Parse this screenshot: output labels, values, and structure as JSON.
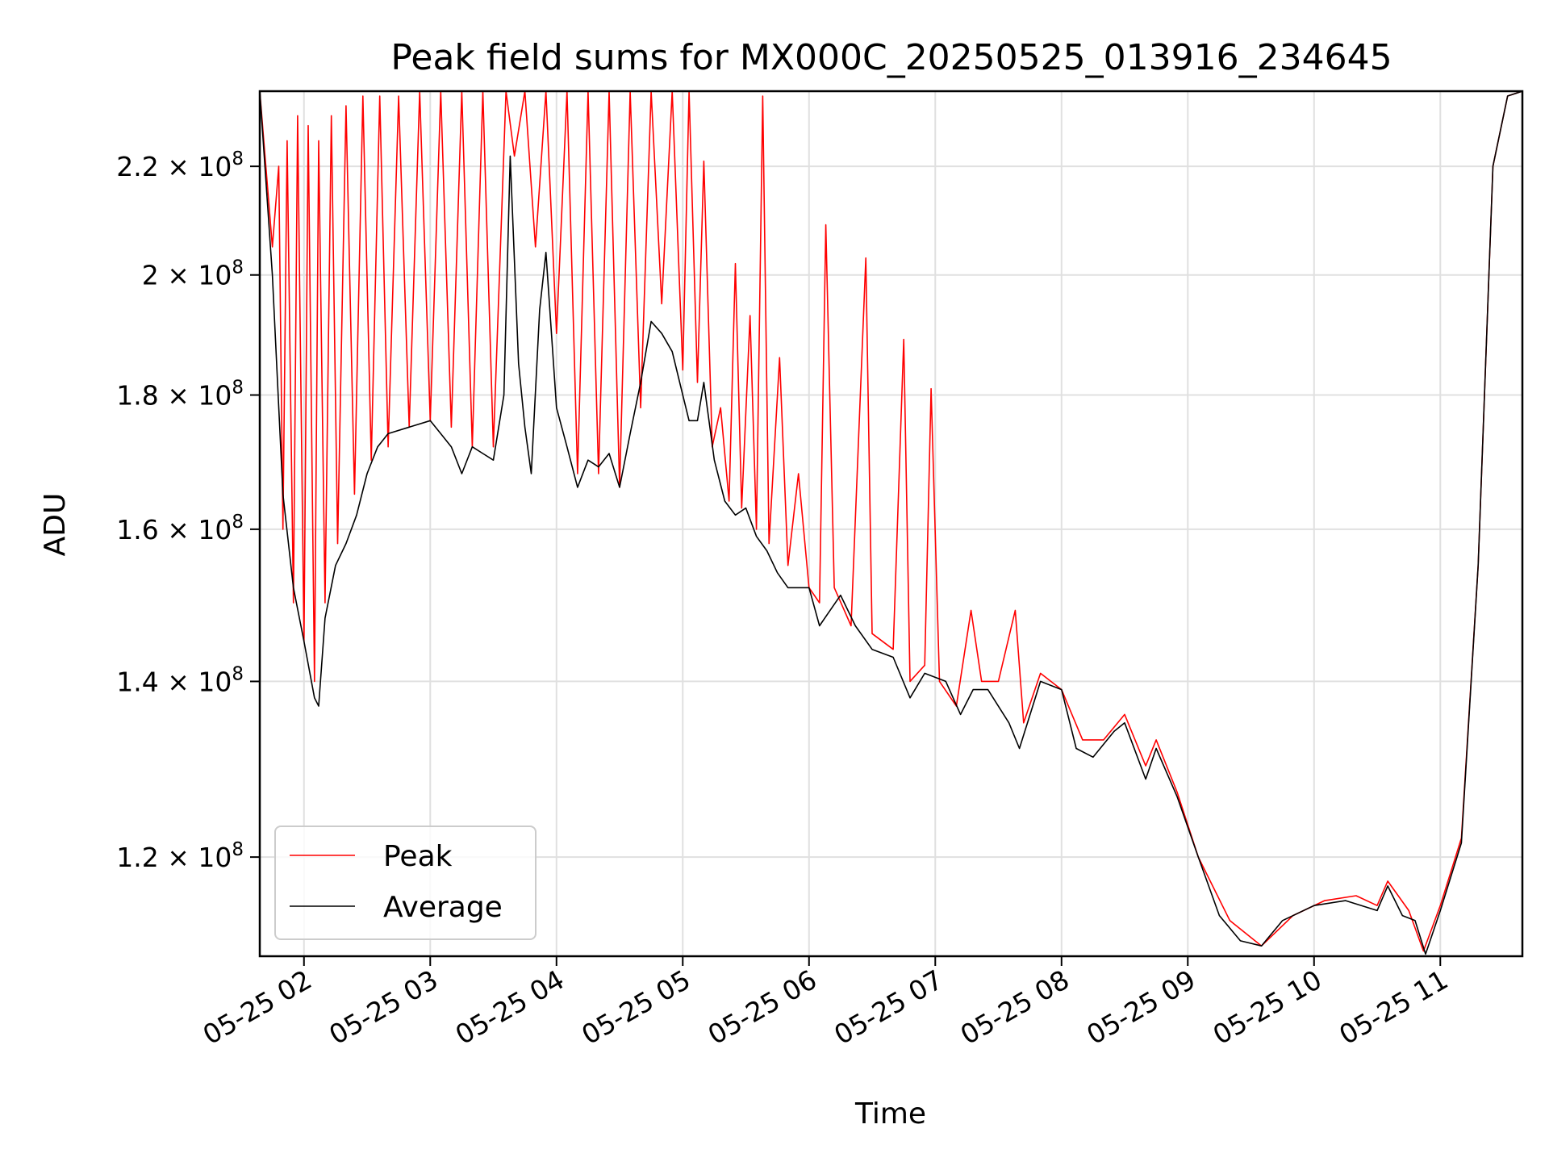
{
  "chart_data": {
    "type": "line",
    "title": "Peak field sums for MX000C_20250525_013916_234645",
    "xlabel": "Time",
    "ylabel": "ADU",
    "x_range": [
      "2025-05-25T01:39",
      "2025-05-25T11:39"
    ],
    "y_range": [
      110000000,
      235000000
    ],
    "y_scale": "log",
    "grid": true,
    "legend_position": "lower-left",
    "x_ticks": [
      {
        "t": "2025-05-25T02:00",
        "label": "05-25 02"
      },
      {
        "t": "2025-05-25T03:00",
        "label": "05-25 03"
      },
      {
        "t": "2025-05-25T04:00",
        "label": "05-25 04"
      },
      {
        "t": "2025-05-25T05:00",
        "label": "05-25 05"
      },
      {
        "t": "2025-05-25T06:00",
        "label": "05-25 06"
      },
      {
        "t": "2025-05-25T07:00",
        "label": "05-25 07"
      },
      {
        "t": "2025-05-25T08:00",
        "label": "05-25 08"
      },
      {
        "t": "2025-05-25T09:00",
        "label": "05-25 09"
      },
      {
        "t": "2025-05-25T10:00",
        "label": "05-25 10"
      },
      {
        "t": "2025-05-25T11:00",
        "label": "05-25 11"
      }
    ],
    "y_ticks": [
      {
        "value": 120000000,
        "mantissa": "1.2",
        "exponent": "8"
      },
      {
        "value": 140000000,
        "mantissa": "1.4",
        "exponent": "8"
      },
      {
        "value": 160000000,
        "mantissa": "1.6",
        "exponent": "8"
      },
      {
        "value": 180000000,
        "mantissa": "1.8",
        "exponent": "8"
      },
      {
        "value": 200000000,
        "mantissa": "2",
        "exponent": "8"
      },
      {
        "value": 220000000,
        "mantissa": "2.2",
        "exponent": "8"
      }
    ],
    "series": [
      {
        "name": "Peak",
        "color": "#ff0000",
        "points": [
          [
            "2025-05-25T01:39",
            235000000
          ],
          [
            "2025-05-25T01:45",
            205000000
          ],
          [
            "2025-05-25T01:48",
            220000000
          ],
          [
            "2025-05-25T01:50",
            160000000
          ],
          [
            "2025-05-25T01:52",
            225000000
          ],
          [
            "2025-05-25T01:55",
            150000000
          ],
          [
            "2025-05-25T01:57",
            230000000
          ],
          [
            "2025-05-25T02:00",
            145000000
          ],
          [
            "2025-05-25T02:02",
            228000000
          ],
          [
            "2025-05-25T02:05",
            140000000
          ],
          [
            "2025-05-25T02:07",
            225000000
          ],
          [
            "2025-05-25T02:10",
            150000000
          ],
          [
            "2025-05-25T02:13",
            230000000
          ],
          [
            "2025-05-25T02:16",
            158000000
          ],
          [
            "2025-05-25T02:20",
            232000000
          ],
          [
            "2025-05-25T02:24",
            165000000
          ],
          [
            "2025-05-25T02:28",
            234000000
          ],
          [
            "2025-05-25T02:32",
            170000000
          ],
          [
            "2025-05-25T02:36",
            234000000
          ],
          [
            "2025-05-25T02:40",
            172000000
          ],
          [
            "2025-05-25T02:45",
            234000000
          ],
          [
            "2025-05-25T02:50",
            175000000
          ],
          [
            "2025-05-25T02:55",
            235000000
          ],
          [
            "2025-05-25T03:00",
            176000000
          ],
          [
            "2025-05-25T03:05",
            235000000
          ],
          [
            "2025-05-25T03:10",
            175000000
          ],
          [
            "2025-05-25T03:15",
            235000000
          ],
          [
            "2025-05-25T03:20",
            172000000
          ],
          [
            "2025-05-25T03:25",
            235000000
          ],
          [
            "2025-05-25T03:30",
            172000000
          ],
          [
            "2025-05-25T03:36",
            235000000
          ],
          [
            "2025-05-25T03:40",
            222000000
          ],
          [
            "2025-05-25T03:45",
            235000000
          ],
          [
            "2025-05-25T03:50",
            205000000
          ],
          [
            "2025-05-25T03:55",
            235000000
          ],
          [
            "2025-05-25T04:00",
            190000000
          ],
          [
            "2025-05-25T04:05",
            235000000
          ],
          [
            "2025-05-25T04:10",
            168000000
          ],
          [
            "2025-05-25T04:15",
            235000000
          ],
          [
            "2025-05-25T04:20",
            168000000
          ],
          [
            "2025-05-25T04:25",
            235000000
          ],
          [
            "2025-05-25T04:30",
            166000000
          ],
          [
            "2025-05-25T04:35",
            235000000
          ],
          [
            "2025-05-25T04:40",
            178000000
          ],
          [
            "2025-05-25T04:45",
            235000000
          ],
          [
            "2025-05-25T04:50",
            195000000
          ],
          [
            "2025-05-25T04:55",
            235000000
          ],
          [
            "2025-05-25T05:00",
            184000000
          ],
          [
            "2025-05-25T05:03",
            235000000
          ],
          [
            "2025-05-25T05:07",
            182000000
          ],
          [
            "2025-05-25T05:10",
            221000000
          ],
          [
            "2025-05-25T05:14",
            172000000
          ],
          [
            "2025-05-25T05:18",
            178000000
          ],
          [
            "2025-05-25T05:22",
            164000000
          ],
          [
            "2025-05-25T05:25",
            202000000
          ],
          [
            "2025-05-25T05:28",
            163000000
          ],
          [
            "2025-05-25T05:32",
            193000000
          ],
          [
            "2025-05-25T05:35",
            160000000
          ],
          [
            "2025-05-25T05:38",
            234000000
          ],
          [
            "2025-05-25T05:41",
            158000000
          ],
          [
            "2025-05-25T05:46",
            186000000
          ],
          [
            "2025-05-25T05:50",
            155000000
          ],
          [
            "2025-05-25T05:55",
            168000000
          ],
          [
            "2025-05-25T06:00",
            152000000
          ],
          [
            "2025-05-25T06:05",
            150000000
          ],
          [
            "2025-05-25T06:08",
            209000000
          ],
          [
            "2025-05-25T06:12",
            152000000
          ],
          [
            "2025-05-25T06:20",
            147000000
          ],
          [
            "2025-05-25T06:27",
            203000000
          ],
          [
            "2025-05-25T06:30",
            146000000
          ],
          [
            "2025-05-25T06:40",
            144000000
          ],
          [
            "2025-05-25T06:45",
            189000000
          ],
          [
            "2025-05-25T06:48",
            140000000
          ],
          [
            "2025-05-25T06:55",
            142000000
          ],
          [
            "2025-05-25T06:58",
            181000000
          ],
          [
            "2025-05-25T07:02",
            140000000
          ],
          [
            "2025-05-25T07:10",
            137000000
          ],
          [
            "2025-05-25T07:17",
            149000000
          ],
          [
            "2025-05-25T07:22",
            140000000
          ],
          [
            "2025-05-25T07:30",
            140000000
          ],
          [
            "2025-05-25T07:38",
            149000000
          ],
          [
            "2025-05-25T07:42",
            135000000
          ],
          [
            "2025-05-25T07:50",
            141000000
          ],
          [
            "2025-05-25T08:00",
            139000000
          ],
          [
            "2025-05-25T08:10",
            133000000
          ],
          [
            "2025-05-25T08:20",
            133000000
          ],
          [
            "2025-05-25T08:30",
            136000000
          ],
          [
            "2025-05-25T08:40",
            130000000
          ],
          [
            "2025-05-25T08:45",
            133000000
          ],
          [
            "2025-05-25T08:55",
            127000000
          ],
          [
            "2025-05-25T09:05",
            120000000
          ],
          [
            "2025-05-25T09:20",
            113500000
          ],
          [
            "2025-05-25T09:35",
            111000000
          ],
          [
            "2025-05-25T09:50",
            114000000
          ],
          [
            "2025-05-25T10:05",
            115500000
          ],
          [
            "2025-05-25T10:20",
            116000000
          ],
          [
            "2025-05-25T10:30",
            115000000
          ],
          [
            "2025-05-25T10:35",
            117500000
          ],
          [
            "2025-05-25T10:45",
            114500000
          ],
          [
            "2025-05-25T10:52",
            110500000
          ],
          [
            "2025-05-25T11:00",
            115000000
          ],
          [
            "2025-05-25T11:10",
            122000000
          ],
          [
            "2025-05-25T11:18",
            155000000
          ],
          [
            "2025-05-25T11:25",
            220000000
          ],
          [
            "2025-05-25T11:32",
            234000000
          ],
          [
            "2025-05-25T11:39",
            235000000
          ]
        ]
      },
      {
        "name": "Average",
        "color": "#000000",
        "points": [
          [
            "2025-05-25T01:39",
            235000000
          ],
          [
            "2025-05-25T01:45",
            200000000
          ],
          [
            "2025-05-25T01:50",
            165000000
          ],
          [
            "2025-05-25T01:55",
            152000000
          ],
          [
            "2025-05-25T02:00",
            145000000
          ],
          [
            "2025-05-25T02:05",
            138000000
          ],
          [
            "2025-05-25T02:07",
            137000000
          ],
          [
            "2025-05-25T02:10",
            148000000
          ],
          [
            "2025-05-25T02:15",
            155000000
          ],
          [
            "2025-05-25T02:20",
            158000000
          ],
          [
            "2025-05-25T02:25",
            162000000
          ],
          [
            "2025-05-25T02:30",
            168000000
          ],
          [
            "2025-05-25T02:35",
            172000000
          ],
          [
            "2025-05-25T02:40",
            174000000
          ],
          [
            "2025-05-25T02:50",
            175000000
          ],
          [
            "2025-05-25T03:00",
            176000000
          ],
          [
            "2025-05-25T03:05",
            174000000
          ],
          [
            "2025-05-25T03:10",
            172000000
          ],
          [
            "2025-05-25T03:15",
            168000000
          ],
          [
            "2025-05-25T03:20",
            172000000
          ],
          [
            "2025-05-25T03:25",
            171000000
          ],
          [
            "2025-05-25T03:30",
            170000000
          ],
          [
            "2025-05-25T03:35",
            180000000
          ],
          [
            "2025-05-25T03:38",
            222000000
          ],
          [
            "2025-05-25T03:42",
            185000000
          ],
          [
            "2025-05-25T03:45",
            175000000
          ],
          [
            "2025-05-25T03:48",
            168000000
          ],
          [
            "2025-05-25T03:52",
            194000000
          ],
          [
            "2025-05-25T03:55",
            204000000
          ],
          [
            "2025-05-25T04:00",
            178000000
          ],
          [
            "2025-05-25T04:05",
            172000000
          ],
          [
            "2025-05-25T04:10",
            166000000
          ],
          [
            "2025-05-25T04:15",
            170000000
          ],
          [
            "2025-05-25T04:20",
            169000000
          ],
          [
            "2025-05-25T04:25",
            171000000
          ],
          [
            "2025-05-25T04:30",
            166000000
          ],
          [
            "2025-05-25T04:35",
            174000000
          ],
          [
            "2025-05-25T04:40",
            182000000
          ],
          [
            "2025-05-25T04:45",
            192000000
          ],
          [
            "2025-05-25T04:50",
            190000000
          ],
          [
            "2025-05-25T04:55",
            187000000
          ],
          [
            "2025-05-25T05:00",
            180000000
          ],
          [
            "2025-05-25T05:03",
            176000000
          ],
          [
            "2025-05-25T05:07",
            176000000
          ],
          [
            "2025-05-25T05:10",
            182000000
          ],
          [
            "2025-05-25T05:15",
            170000000
          ],
          [
            "2025-05-25T05:20",
            164000000
          ],
          [
            "2025-05-25T05:25",
            162000000
          ],
          [
            "2025-05-25T05:30",
            163000000
          ],
          [
            "2025-05-25T05:35",
            159000000
          ],
          [
            "2025-05-25T05:40",
            157000000
          ],
          [
            "2025-05-25T05:45",
            154000000
          ],
          [
            "2025-05-25T05:50",
            152000000
          ],
          [
            "2025-05-25T06:00",
            152000000
          ],
          [
            "2025-05-25T06:05",
            147000000
          ],
          [
            "2025-05-25T06:10",
            149000000
          ],
          [
            "2025-05-25T06:15",
            151000000
          ],
          [
            "2025-05-25T06:22",
            147000000
          ],
          [
            "2025-05-25T06:30",
            144000000
          ],
          [
            "2025-05-25T06:40",
            143000000
          ],
          [
            "2025-05-25T06:48",
            138000000
          ],
          [
            "2025-05-25T06:55",
            141000000
          ],
          [
            "2025-05-25T07:05",
            140000000
          ],
          [
            "2025-05-25T07:12",
            136000000
          ],
          [
            "2025-05-25T07:18",
            139000000
          ],
          [
            "2025-05-25T07:25",
            139000000
          ],
          [
            "2025-05-25T07:35",
            135000000
          ],
          [
            "2025-05-25T07:40",
            132000000
          ],
          [
            "2025-05-25T07:50",
            140000000
          ],
          [
            "2025-05-25T08:00",
            139000000
          ],
          [
            "2025-05-25T08:07",
            132000000
          ],
          [
            "2025-05-25T08:15",
            131000000
          ],
          [
            "2025-05-25T08:25",
            134000000
          ],
          [
            "2025-05-25T08:30",
            135000000
          ],
          [
            "2025-05-25T08:40",
            128500000
          ],
          [
            "2025-05-25T08:45",
            132000000
          ],
          [
            "2025-05-25T08:55",
            126500000
          ],
          [
            "2025-05-25T09:05",
            120000000
          ],
          [
            "2025-05-25T09:15",
            114000000
          ],
          [
            "2025-05-25T09:25",
            111500000
          ],
          [
            "2025-05-25T09:35",
            111000000
          ],
          [
            "2025-05-25T09:45",
            113500000
          ],
          [
            "2025-05-25T10:00",
            115000000
          ],
          [
            "2025-05-25T10:15",
            115500000
          ],
          [
            "2025-05-25T10:30",
            114500000
          ],
          [
            "2025-05-25T10:35",
            117000000
          ],
          [
            "2025-05-25T10:42",
            114000000
          ],
          [
            "2025-05-25T10:48",
            113500000
          ],
          [
            "2025-05-25T10:53",
            110200000
          ],
          [
            "2025-05-25T11:00",
            114500000
          ],
          [
            "2025-05-25T11:10",
            121500000
          ],
          [
            "2025-05-25T11:18",
            155000000
          ],
          [
            "2025-05-25T11:25",
            220000000
          ],
          [
            "2025-05-25T11:32",
            234000000
          ],
          [
            "2025-05-25T11:39",
            235000000
          ]
        ]
      }
    ]
  }
}
